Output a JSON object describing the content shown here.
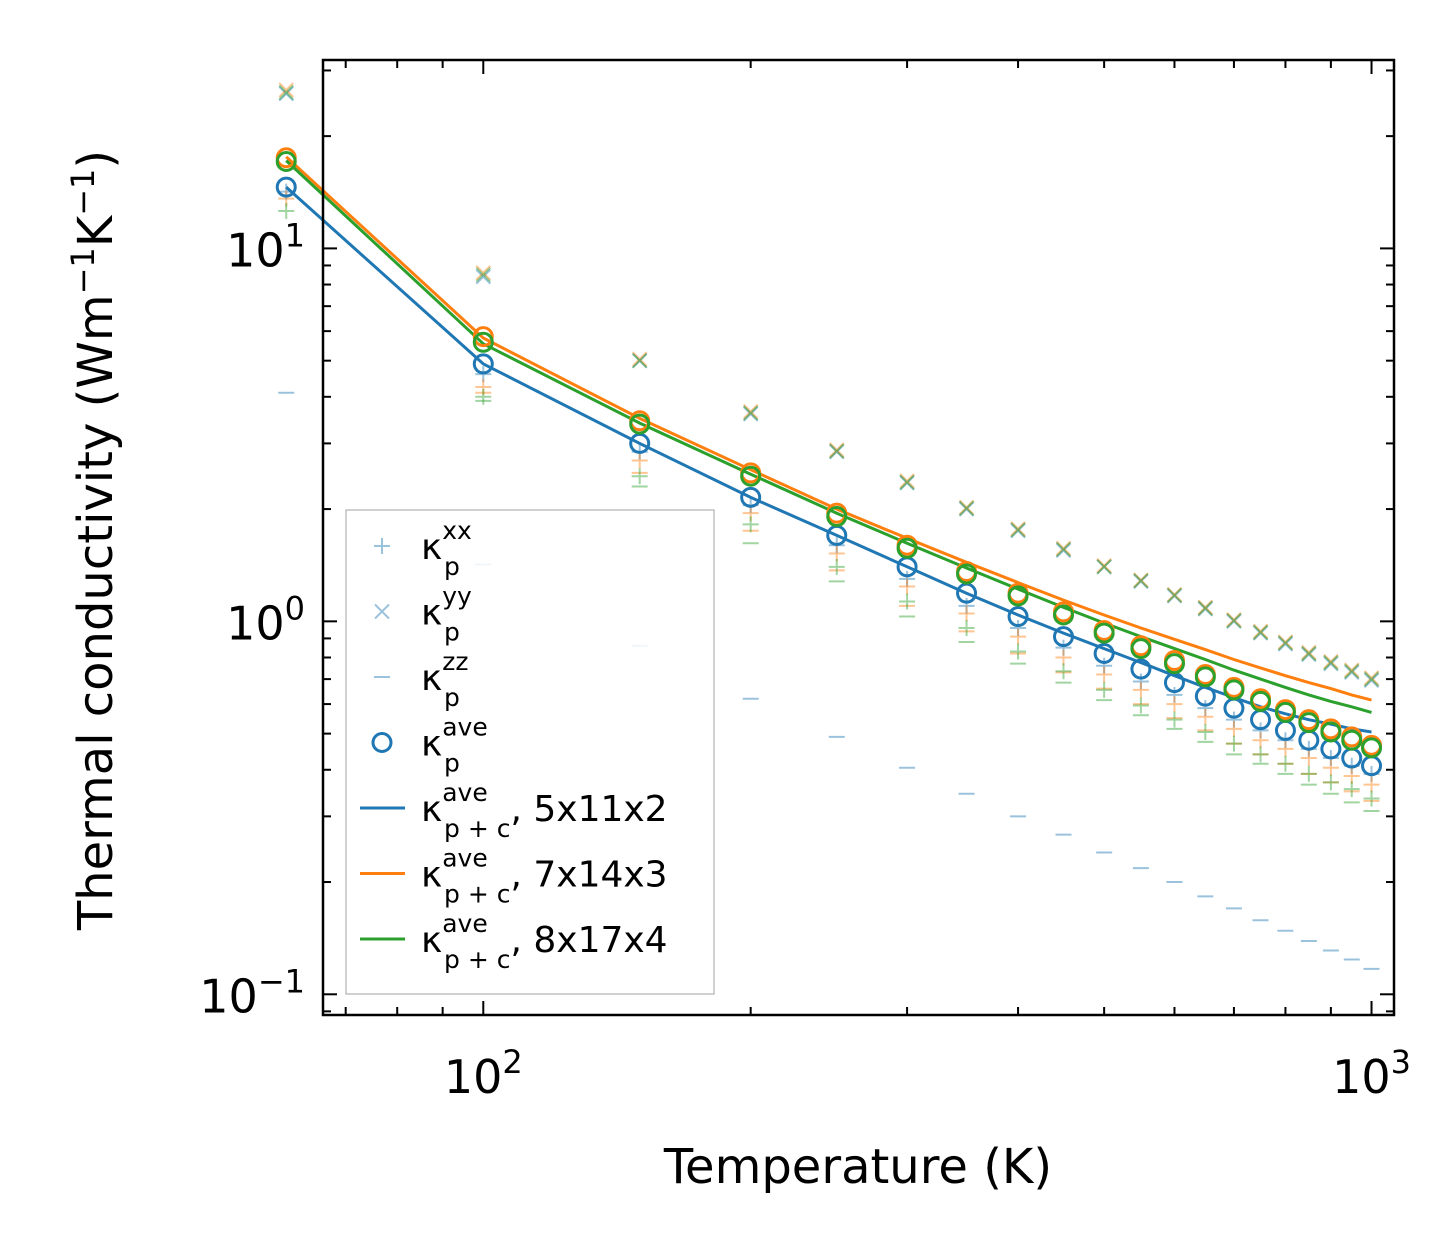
{
  "chart_data": {
    "type": "scatter",
    "xscale": "log",
    "yscale": "log",
    "xlim": [
      66,
      1060
    ],
    "ylim": [
      0.088,
      32
    ],
    "xlabel": "Temperature (K)",
    "ylabel_main": "Thermal conductivity (Wm",
    "ylabel_exp1": "−1",
    "ylabel_mid": "K",
    "ylabel_exp2": "−1",
    "ylabel_close": ")",
    "x_ticks": [
      {
        "value": 100,
        "base": "10",
        "exp": "2"
      },
      {
        "value": 1000,
        "base": "10",
        "exp": "3"
      }
    ],
    "y_ticks": [
      {
        "value": 0.1,
        "base": "10",
        "exp": "−1"
      },
      {
        "value": 1,
        "base": "10",
        "exp": "0"
      },
      {
        "value": 10,
        "base": "10",
        "exp": "1"
      }
    ],
    "colors": {
      "blue": "#1f77b4",
      "orange": "#ff7f0e",
      "green": "#2ca02c"
    },
    "x": [
      60,
      100,
      150,
      200,
      250,
      300,
      350,
      400,
      450,
      500,
      550,
      600,
      650,
      700,
      750,
      800,
      850,
      900,
      950,
      1000
    ],
    "series": [
      {
        "name": "κp^xx 5x11x2",
        "marker": "plus",
        "color": "#1f77b4",
        "alpha": 0.45,
        "values": [
          14.2,
          4.6,
          2.85,
          2.05,
          1.6,
          1.3,
          1.1,
          0.96,
          0.85,
          0.76,
          0.69,
          0.635,
          0.585,
          0.545,
          0.51,
          0.48,
          0.455,
          0.43,
          0.41,
          0.39
        ]
      },
      {
        "name": "κp^xx 7x14x3",
        "marker": "plus",
        "color": "#ff7f0e",
        "alpha": 0.45,
        "values": [
          13.6,
          4.25,
          2.7,
          1.95,
          1.52,
          1.24,
          1.05,
          0.91,
          0.8,
          0.72,
          0.655,
          0.6,
          0.555,
          0.515,
          0.48,
          0.455,
          0.43,
          0.405,
          0.385,
          0.365
        ]
      },
      {
        "name": "κp^xx 8x17x4",
        "marker": "plus",
        "color": "#2ca02c",
        "alpha": 0.45,
        "values": [
          12.6,
          4.0,
          2.45,
          1.82,
          1.4,
          1.13,
          0.96,
          0.83,
          0.735,
          0.655,
          0.595,
          0.545,
          0.505,
          0.47,
          0.44,
          0.415,
          0.39,
          0.37,
          0.355,
          0.335
        ]
      },
      {
        "name": "κp^yy 5x11x2",
        "marker": "x",
        "color": "#1f77b4",
        "alpha": 0.45,
        "values": [
          26.0,
          8.4,
          5.0,
          3.6,
          2.85,
          2.35,
          2.0,
          1.75,
          1.55,
          1.4,
          1.28,
          1.17,
          1.08,
          1.0,
          0.93,
          0.87,
          0.815,
          0.77,
          0.73,
          0.695
        ]
      },
      {
        "name": "κp^yy 7x14x3",
        "marker": "x",
        "color": "#ff7f0e",
        "alpha": 0.45,
        "values": [
          26.6,
          8.6,
          5.05,
          3.65,
          2.88,
          2.38,
          2.02,
          1.77,
          1.57,
          1.41,
          1.29,
          1.18,
          1.09,
          1.01,
          0.94,
          0.88,
          0.825,
          0.78,
          0.74,
          0.705
        ]
      },
      {
        "name": "κp^yy 8x17x4",
        "marker": "x",
        "color": "#2ca02c",
        "alpha": 0.45,
        "values": [
          26.2,
          8.5,
          5.0,
          3.62,
          2.86,
          2.36,
          2.01,
          1.76,
          1.56,
          1.4,
          1.285,
          1.175,
          1.085,
          1.005,
          0.935,
          0.875,
          0.82,
          0.775,
          0.735,
          0.7
        ]
      },
      {
        "name": "κp^zz 5x11x2",
        "marker": "dash",
        "color": "#1f77b4",
        "alpha": 0.45,
        "values": [
          4.1,
          1.42,
          0.86,
          0.62,
          0.49,
          0.405,
          0.345,
          0.3,
          0.268,
          0.24,
          0.218,
          0.2,
          0.183,
          0.17,
          0.158,
          0.148,
          0.139,
          0.131,
          0.124,
          0.117
        ]
      },
      {
        "name": "κp^zz 7x14x3",
        "marker": "dash",
        "color": "#ff7f0e",
        "alpha": 0.45,
        "values": [
          null,
          4.1,
          2.5,
          1.75,
          1.37,
          1.1,
          0.94,
          0.82,
          0.73,
          0.66,
          0.6,
          0.55,
          0.51,
          0.47,
          0.44,
          0.415,
          0.39,
          0.37,
          0.35,
          0.33
        ]
      },
      {
        "name": "κp^zz 8x17x4",
        "marker": "dash",
        "color": "#2ca02c",
        "alpha": 0.45,
        "values": [
          null,
          3.9,
          2.3,
          1.62,
          1.28,
          1.03,
          0.88,
          0.77,
          0.685,
          0.615,
          0.56,
          0.515,
          0.475,
          0.44,
          0.415,
          0.39,
          0.365,
          0.345,
          0.327,
          0.31
        ]
      },
      {
        "name": "κp^ave 5x11x2",
        "marker": "circle",
        "color": "#1f77b4",
        "alpha": 1,
        "values": [
          14.6,
          4.9,
          3.0,
          2.15,
          1.7,
          1.4,
          1.19,
          1.03,
          0.91,
          0.82,
          0.745,
          0.685,
          0.63,
          0.585,
          0.545,
          0.51,
          0.48,
          0.455,
          0.43,
          0.41
        ]
      },
      {
        "name": "κp^ave 7x14x3",
        "marker": "circle",
        "color": "#ff7f0e",
        "alpha": 1,
        "values": [
          17.5,
          5.8,
          3.45,
          2.5,
          1.95,
          1.6,
          1.36,
          1.19,
          1.06,
          0.945,
          0.86,
          0.785,
          0.72,
          0.665,
          0.62,
          0.58,
          0.545,
          0.515,
          0.49,
          0.465
        ]
      },
      {
        "name": "κp^ave 8x17x4",
        "marker": "circle",
        "color": "#2ca02c",
        "alpha": 1,
        "values": [
          17.1,
          5.6,
          3.38,
          2.45,
          1.91,
          1.57,
          1.34,
          1.17,
          1.04,
          0.93,
          0.845,
          0.77,
          0.71,
          0.655,
          0.61,
          0.57,
          0.535,
          0.505,
          0.48,
          0.458
        ]
      },
      {
        "name": "κp+c^ave 5x11x2",
        "marker": "line",
        "color": "#1f77b4",
        "alpha": 1,
        "values": [
          14.6,
          4.9,
          3.0,
          2.15,
          1.7,
          1.4,
          1.19,
          1.04,
          0.93,
          0.845,
          0.775,
          0.715,
          0.665,
          0.625,
          0.59,
          0.565,
          0.545,
          0.53,
          0.515,
          0.505
        ]
      },
      {
        "name": "κp+c^ave 7x14x3",
        "marker": "line",
        "color": "#ff7f0e",
        "alpha": 1,
        "values": [
          17.6,
          5.75,
          3.5,
          2.55,
          2.0,
          1.67,
          1.44,
          1.27,
          1.14,
          1.04,
          0.96,
          0.895,
          0.84,
          0.79,
          0.75,
          0.715,
          0.685,
          0.66,
          0.635,
          0.615
        ]
      },
      {
        "name": "κp+c^ave 8x17x4",
        "marker": "line",
        "color": "#2ca02c",
        "alpha": 1,
        "values": [
          17.2,
          5.55,
          3.4,
          2.48,
          1.95,
          1.62,
          1.39,
          1.22,
          1.09,
          0.99,
          0.91,
          0.845,
          0.79,
          0.74,
          0.7,
          0.665,
          0.635,
          0.61,
          0.59,
          0.57
        ]
      }
    ],
    "legend": {
      "placement": "lower-left",
      "entries": [
        {
          "marker": "plus",
          "color": "#1f77b4",
          "alpha": 0.45,
          "sym": "κ",
          "sup": "xx",
          "sub": "p",
          "suffix": ""
        },
        {
          "marker": "x",
          "color": "#1f77b4",
          "alpha": 0.45,
          "sym": "κ",
          "sup": "yy",
          "sub": "p",
          "suffix": ""
        },
        {
          "marker": "dash",
          "color": "#1f77b4",
          "alpha": 0.45,
          "sym": "κ",
          "sup": "zz",
          "sub": "p",
          "suffix": ""
        },
        {
          "marker": "circle",
          "color": "#1f77b4",
          "alpha": 1,
          "sym": "κ",
          "sup": "ave",
          "sub": "p",
          "suffix": ""
        },
        {
          "marker": "line",
          "color": "#1f77b4",
          "alpha": 1,
          "sym": "κ",
          "sup": "ave",
          "sub": "p + c",
          "suffix": ", 5x11x2"
        },
        {
          "marker": "line",
          "color": "#ff7f0e",
          "alpha": 1,
          "sym": "κ",
          "sup": "ave",
          "sub": "p + c",
          "suffix": ", 7x14x3"
        },
        {
          "marker": "line",
          "color": "#2ca02c",
          "alpha": 1,
          "sym": "κ",
          "sup": "ave",
          "sub": "p + c",
          "suffix": ", 8x17x4"
        }
      ]
    }
  }
}
